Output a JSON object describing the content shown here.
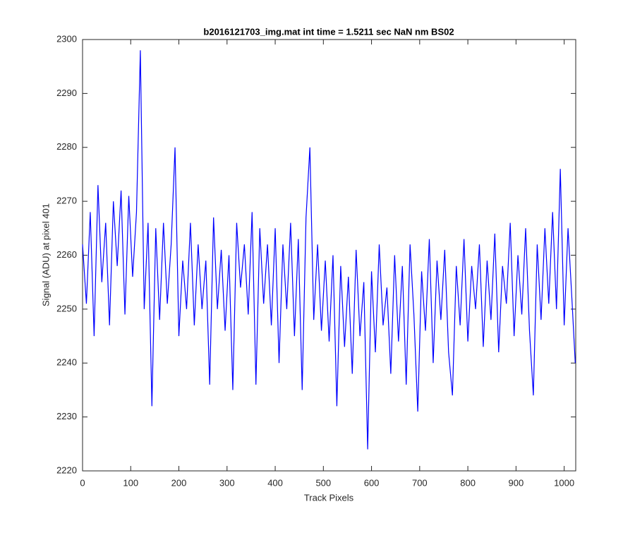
{
  "chart_data": {
    "type": "line",
    "title": "b2016121703_img.mat int time = 1.5211 sec  NaN nm BS02",
    "x_label": "Track Pixels",
    "y_label": "Signal (ADU) at pixel 401",
    "x": [
      0,
      8,
      16,
      24,
      32,
      40,
      48,
      56,
      64,
      72,
      80,
      88,
      96,
      104,
      112,
      120,
      128,
      136,
      144,
      152,
      160,
      168,
      176,
      184,
      192,
      200,
      208,
      216,
      224,
      232,
      240,
      248,
      256,
      264,
      272,
      280,
      288,
      296,
      304,
      312,
      320,
      328,
      336,
      344,
      352,
      360,
      368,
      376,
      384,
      392,
      400,
      408,
      416,
      424,
      432,
      440,
      448,
      456,
      464,
      472,
      480,
      488,
      496,
      504,
      512,
      520,
      528,
      536,
      544,
      552,
      560,
      568,
      576,
      584,
      592,
      600,
      608,
      616,
      624,
      632,
      640,
      648,
      656,
      664,
      672,
      680,
      688,
      696,
      704,
      712,
      720,
      728,
      736,
      744,
      752,
      760,
      768,
      776,
      784,
      792,
      800,
      808,
      816,
      824,
      832,
      840,
      848,
      856,
      864,
      872,
      880,
      888,
      896,
      904,
      912,
      920,
      928,
      936,
      944,
      952,
      960,
      968,
      976,
      984,
      992,
      1000,
      1008,
      1016,
      1023
    ],
    "series": [
      {
        "name": "signal",
        "color": "#0000ff",
        "values": [
          2262,
          2251,
          2268,
          2245,
          2273,
          2255,
          2266,
          2247,
          2270,
          2258,
          2272,
          2249,
          2271,
          2256,
          2268,
          2298,
          2250,
          2266,
          2232,
          2265,
          2248,
          2266,
          2251,
          2262,
          2280,
          2245,
          2259,
          2250,
          2266,
          2247,
          2262,
          2250,
          2259,
          2236,
          2267,
          2250,
          2261,
          2246,
          2260,
          2235,
          2266,
          2254,
          2262,
          2249,
          2268,
          2236,
          2265,
          2251,
          2262,
          2247,
          2265,
          2240,
          2262,
          2250,
          2266,
          2245,
          2263,
          2235,
          2267,
          2280,
          2248,
          2262,
          2246,
          2259,
          2244,
          2260,
          2232,
          2258,
          2243,
          2256,
          2238,
          2261,
          2245,
          2255,
          2224,
          2257,
          2242,
          2262,
          2247,
          2254,
          2238,
          2260,
          2244,
          2258,
          2236,
          2262,
          2249,
          2231,
          2257,
          2246,
          2263,
          2240,
          2259,
          2248,
          2261,
          2242,
          2234,
          2258,
          2247,
          2263,
          2244,
          2258,
          2250,
          2262,
          2243,
          2259,
          2248,
          2264,
          2242,
          2258,
          2251,
          2266,
          2245,
          2260,
          2249,
          2265,
          2246,
          2234,
          2262,
          2248,
          2265,
          2251,
          2268,
          2250,
          2276,
          2247,
          2265,
          2252,
          2240
        ]
      }
    ],
    "xlim": [
      0,
      1024
    ],
    "ylim": [
      2220,
      2300
    ],
    "xticks": [
      0,
      100,
      200,
      300,
      400,
      500,
      600,
      700,
      800,
      900,
      1000
    ],
    "yticks": [
      2220,
      2230,
      2240,
      2250,
      2260,
      2270,
      2280,
      2290,
      2300
    ]
  }
}
